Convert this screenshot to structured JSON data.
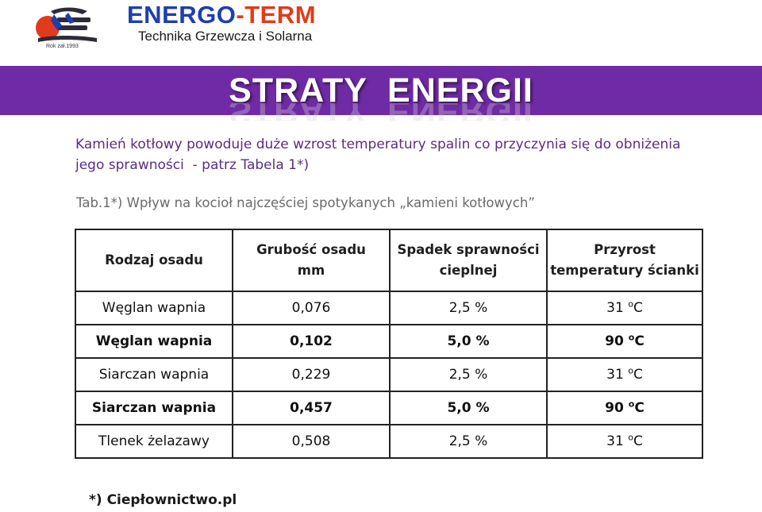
{
  "header": {
    "brand_part1": "ENERGO",
    "brand_dash": "-",
    "brand_part2": "TERM",
    "tagline": "Technika Grzewcza i Solarna",
    "logo_year": "Rok zał.1993"
  },
  "banner": {
    "title": "STRATY  ENERGII"
  },
  "intro": {
    "line1": "Kamień kotłowy powoduje duże wzrost temperatury spalin co przyczynia się do obniżenia",
    "line2": "jego sprawności  - patrz Tabela 1*)"
  },
  "caption": "Tab.1*) Wpływ na kocioł najczęściej spotykanych „kamieni kotłowych”",
  "table": {
    "headers": [
      "Rodzaj osadu",
      "Grubość osadu mm",
      "Spadek sprawności cieplnej",
      "Przyrost temperatury ścianki"
    ],
    "header_lines": [
      [
        "Rodzaj osadu",
        ""
      ],
      [
        "Grubość osadu",
        "mm"
      ],
      [
        "Spadek sprawności",
        "cieplnej"
      ],
      [
        "Przyrost",
        "temperatury ścianki"
      ]
    ],
    "rows": [
      {
        "type": "Węglan wapnia",
        "thickness": "0,076",
        "drop": "2,5 %",
        "temp_value": "31",
        "temp_unit_sup": "o",
        "temp_unit": "C",
        "bold": false
      },
      {
        "type": "Węglan wapnia",
        "thickness": "0,102",
        "drop": "5,0 %",
        "temp_value": "90",
        "temp_unit_sup": "o",
        "temp_unit": "C",
        "bold": true
      },
      {
        "type": "Siarczan wapnia",
        "thickness": "0,229",
        "drop": "2,5 %",
        "temp_value": "31",
        "temp_unit_sup": "o",
        "temp_unit": "C",
        "bold": false
      },
      {
        "type": "Siarczan wapnia",
        "thickness": "0,457",
        "drop": "5,0 %",
        "temp_value": "90",
        "temp_unit_sup": "o",
        "temp_unit": "C",
        "bold": true
      },
      {
        "type": "Tlenek żelazawy",
        "thickness": "0,508",
        "drop": "2,5 %",
        "temp_value": "31",
        "temp_unit_sup": "o",
        "temp_unit": "C",
        "bold": false
      }
    ]
  },
  "footnote": "*) Ciepłownictwo.pl",
  "colors": {
    "banner": "#6f2aa5",
    "brand_blue": "#1d3fae",
    "brand_red": "#e23a1c",
    "intro_text": "#5b2d82"
  },
  "icons": {
    "logo": "energo-term-logo"
  }
}
